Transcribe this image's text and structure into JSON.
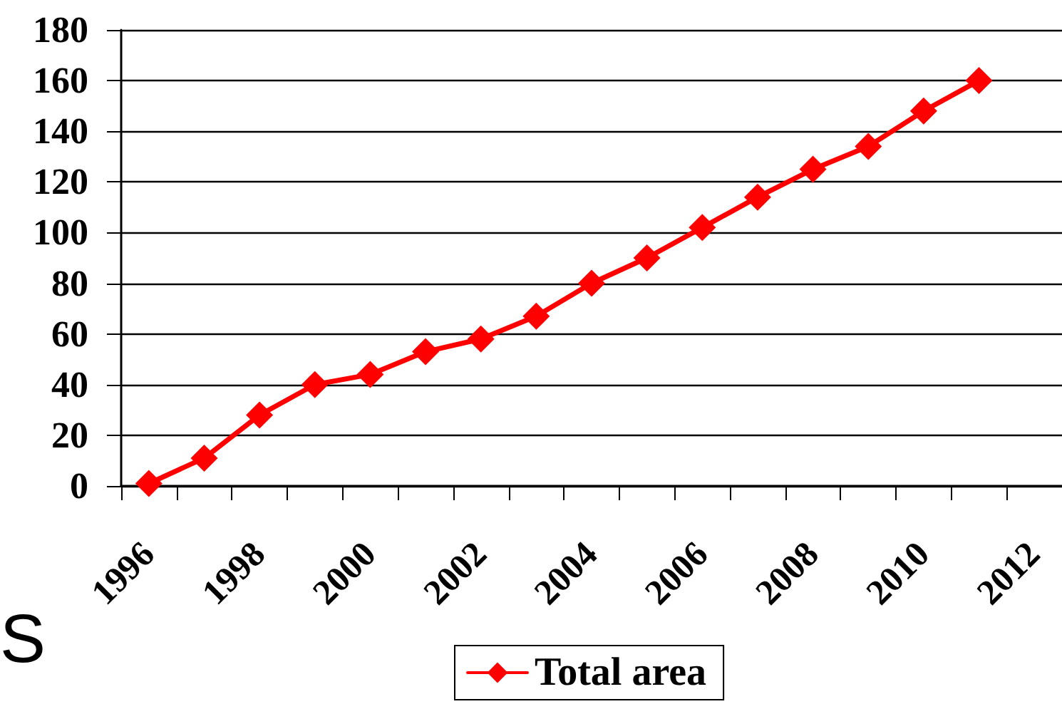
{
  "chart_data": {
    "type": "line",
    "categories": [
      "1996",
      null,
      "1998",
      null,
      "2000",
      null,
      "2002",
      null,
      "2004",
      null,
      "2006",
      null,
      "2008",
      null,
      "2010",
      null,
      "2012"
    ],
    "series": [
      {
        "name": "Total area",
        "color": "#ff0000",
        "values": [
          1,
          11,
          28,
          40,
          44,
          53,
          58,
          67,
          80,
          90,
          102,
          114,
          125,
          134,
          148,
          160,
          null
        ]
      }
    ],
    "ylim": [
      0,
      180
    ],
    "yticks": [
      0,
      20,
      40,
      60,
      80,
      100,
      120,
      140,
      160,
      180
    ],
    "grid": "y",
    "legend": "bottom",
    "marker": "diamond",
    "line_style": "solid",
    "annotations": [
      "S"
    ]
  }
}
